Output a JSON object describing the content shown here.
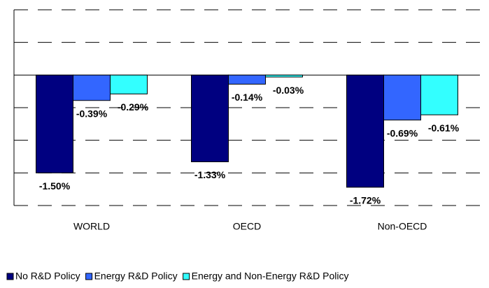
{
  "chart_data": {
    "type": "bar",
    "categories": [
      "WORLD",
      "OECD",
      "Non-OECD"
    ],
    "series": [
      {
        "name": "No R&D Policy",
        "color": "#000080",
        "values": [
          -1.5,
          -1.33,
          -1.72
        ],
        "value_labels": [
          "-1.50%",
          "-1.33%",
          "-1.72%"
        ]
      },
      {
        "name": "Energy R&D Policy",
        "color": "#3366ff",
        "values": [
          -0.39,
          -0.14,
          -0.69
        ],
        "value_labels": [
          "-0.39%",
          "-0.14%",
          "-0.69%"
        ]
      },
      {
        "name": "Energy and Non-Energy R&D Policy",
        "color": "#33ffff",
        "values": [
          -0.29,
          -0.03,
          -0.61
        ],
        "value_labels": [
          "-0.29%",
          "-0.03%",
          "-0.61%"
        ]
      }
    ],
    "ylim": [
      -2,
      1
    ],
    "yticks": [
      -2,
      -1.5,
      -1,
      -0.5,
      0,
      0.5,
      1
    ],
    "grid": true,
    "legend": "bottom"
  }
}
